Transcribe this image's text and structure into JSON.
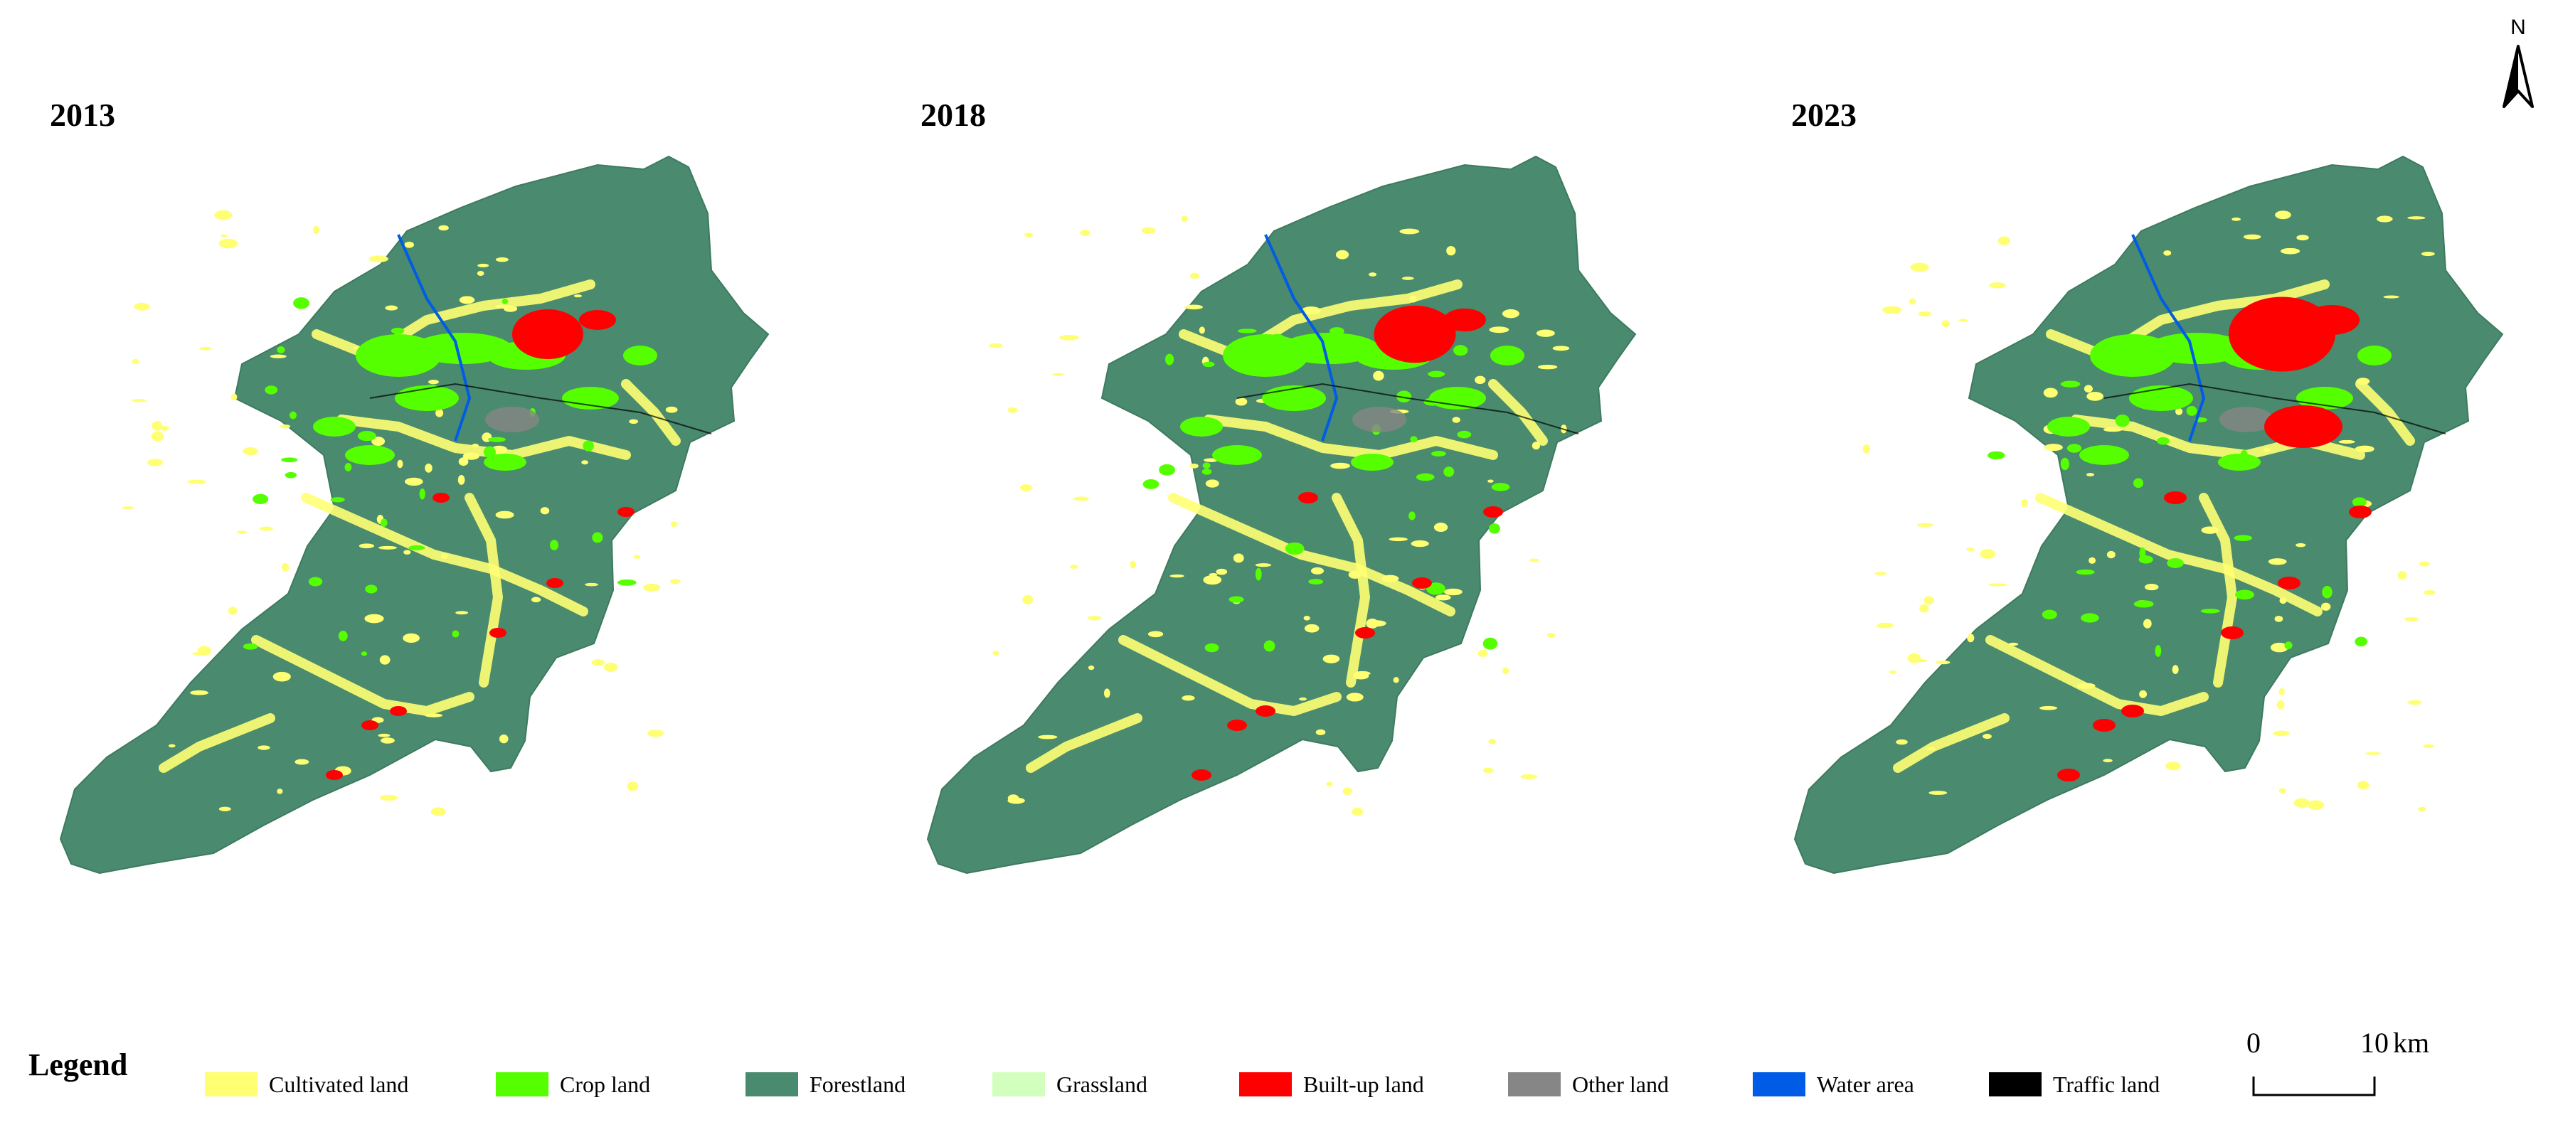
{
  "maps": [
    {
      "year": "2013"
    },
    {
      "year": "2018"
    },
    {
      "year": "2023"
    }
  ],
  "north_arrow": {
    "label": "N"
  },
  "legend": {
    "title": "Legend",
    "items": [
      {
        "label": "Cultivated land",
        "color": "#ffff73"
      },
      {
        "label": "Crop land",
        "color": "#55ff00"
      },
      {
        "label": "Forestland",
        "color": "#4a8a6e"
      },
      {
        "label": "Grassland",
        "color": "#d3ffbe"
      },
      {
        "label": "Built-up land",
        "color": "#ff0000"
      },
      {
        "label": "Other land",
        "color": "#868686"
      },
      {
        "label": "Water area",
        "color": "#005ce6"
      },
      {
        "label": "Traffic land",
        "color": "#000000"
      }
    ]
  },
  "scale_bar": {
    "start": "0",
    "end": "10",
    "unit": "km"
  }
}
